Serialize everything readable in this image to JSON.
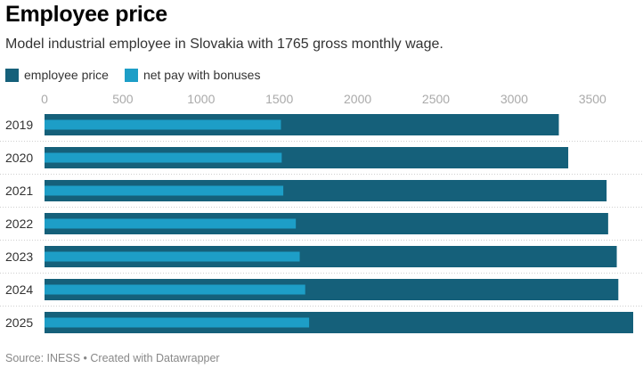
{
  "header": {
    "title": "Employee price",
    "subtitle": "Model industrial employee in Slovakia with 1765 gross monthly wage."
  },
  "legend": [
    {
      "label": "employee price",
      "color": "#15607a"
    },
    {
      "label": "net pay with bonuses",
      "color": "#1d9ec7"
    }
  ],
  "footer": {
    "text": "Source: INESS • Created with Datawrapper"
  },
  "chart_data": {
    "type": "bar",
    "orientation": "horizontal",
    "categories": [
      "2019",
      "2020",
      "2021",
      "2022",
      "2023",
      "2024",
      "2025"
    ],
    "series": [
      {
        "name": "employee price",
        "color": "#15607a",
        "values": [
          3285,
          3345,
          3590,
          3600,
          3655,
          3665,
          3760
        ]
      },
      {
        "name": "net pay with bonuses",
        "color": "#1d9ec7",
        "values": [
          1510,
          1515,
          1525,
          1605,
          1630,
          1665,
          1690
        ]
      }
    ],
    "x_ticks": [
      "0",
      "500",
      "1000",
      "1500",
      "2000",
      "2500",
      "3000",
      "3500"
    ],
    "xlim": [
      0,
      3760
    ],
    "grid": true,
    "legend_position": "top-left"
  }
}
